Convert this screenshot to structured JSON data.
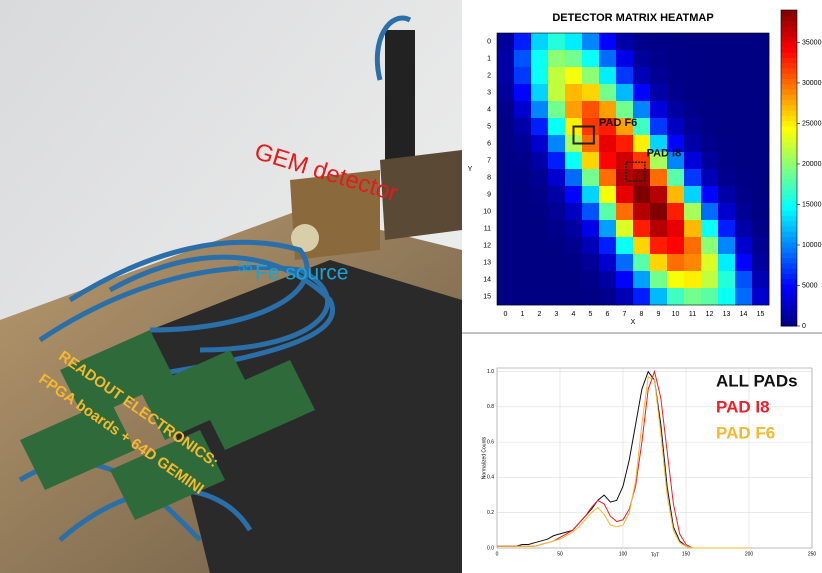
{
  "photo_labels": {
    "gem": "GEM detector",
    "source_sup": "55",
    "source": "Fe source",
    "readout_1": "READOUT ELECTRONICS:",
    "readout_2": "FPGA boards + 64D GEMINI"
  },
  "chart_data": [
    {
      "type": "heatmap",
      "title": "DETECTOR MATRIX HEATMAP",
      "x_label": "X",
      "y_label": "Y",
      "xticks": [
        0,
        1,
        2,
        3,
        4,
        5,
        6,
        7,
        8,
        9,
        10,
        11,
        12,
        13,
        14,
        15
      ],
      "yticks": [
        0,
        1,
        2,
        3,
        4,
        5,
        6,
        7,
        8,
        9,
        10,
        11,
        12,
        13,
        14,
        15
      ],
      "annotations": [
        "PAD F6",
        "PAD I8"
      ],
      "zlim": [
        0,
        39000
      ],
      "cticks": [
        0,
        5000,
        10000,
        15000,
        20000,
        25000,
        30000,
        35000
      ],
      "z": [
        [
          1000,
          6000,
          13000,
          16000,
          14000,
          10000,
          5000,
          1500,
          500,
          300,
          200,
          100,
          100,
          100,
          100,
          100
        ],
        [
          1500,
          8000,
          15000,
          20000,
          19000,
          15000,
          9000,
          4000,
          1000,
          500,
          300,
          200,
          100,
          100,
          100,
          100
        ],
        [
          1500,
          7000,
          15000,
          22000,
          24000,
          20000,
          14000,
          7000,
          2000,
          800,
          300,
          200,
          100,
          100,
          100,
          100
        ],
        [
          1000,
          5000,
          13000,
          22000,
          27000,
          26000,
          19000,
          12000,
          5000,
          1500,
          500,
          200,
          100,
          100,
          100,
          100
        ],
        [
          500,
          3000,
          10000,
          19000,
          28000,
          31000,
          28000,
          19000,
          10000,
          3500,
          1200,
          400,
          200,
          100,
          100,
          100
        ],
        [
          300,
          1500,
          6000,
          15000,
          25000,
          32000,
          33000,
          28000,
          17000,
          7000,
          2500,
          800,
          300,
          100,
          100,
          100
        ],
        [
          200,
          800,
          3000,
          10000,
          21000,
          30000,
          35000,
          33000,
          25000,
          13000,
          5000,
          1500,
          500,
          200,
          100,
          100
        ],
        [
          100,
          400,
          1500,
          6000,
          15000,
          26000,
          34000,
          36000,
          32000,
          21000,
          10000,
          3500,
          1000,
          300,
          100,
          100
        ],
        [
          100,
          200,
          800,
          3000,
          9000,
          19000,
          30000,
          37000,
          38000,
          30000,
          18000,
          7000,
          2000,
          600,
          200,
          100
        ],
        [
          100,
          100,
          400,
          1500,
          5000,
          13000,
          24000,
          35000,
          39000,
          37000,
          27000,
          13000,
          5000,
          1500,
          400,
          100
        ],
        [
          100,
          100,
          200,
          800,
          2500,
          8000,
          18000,
          30000,
          37000,
          39000,
          33000,
          21000,
          9000,
          3000,
          800,
          200
        ],
        [
          100,
          100,
          100,
          400,
          1200,
          4000,
          11000,
          23000,
          33000,
          37000,
          35000,
          27000,
          15000,
          6000,
          1500,
          400
        ],
        [
          100,
          100,
          100,
          200,
          600,
          2000,
          6000,
          15000,
          26000,
          33000,
          34000,
          30000,
          20000,
          10000,
          3000,
          700
        ],
        [
          100,
          100,
          100,
          100,
          300,
          900,
          3000,
          9000,
          18000,
          26000,
          30000,
          29000,
          23000,
          14000,
          5000,
          1200
        ],
        [
          100,
          100,
          100,
          100,
          100,
          400,
          1300,
          5000,
          11000,
          19000,
          24000,
          25000,
          22000,
          16000,
          8000,
          2000
        ],
        [
          100,
          100,
          100,
          100,
          100,
          200,
          600,
          2000,
          6000,
          12000,
          17000,
          19000,
          18000,
          15000,
          9000,
          3000
        ]
      ]
    },
    {
      "type": "line",
      "x_label": "ToT",
      "y_label": "Normalized Counts",
      "xlim": [
        0,
        250
      ],
      "xticks": [
        0,
        50,
        100,
        150,
        200,
        250
      ],
      "ylim": [
        0,
        1.02
      ],
      "yticks": [
        {
          "value": 0,
          "label": "0.0"
        },
        0.2,
        0.4,
        0.6,
        0.8,
        {
          "value": 1,
          "label": "1.0"
        }
      ],
      "grid": true,
      "x": [
        0,
        5,
        10,
        15,
        20,
        25,
        30,
        35,
        40,
        45,
        50,
        55,
        60,
        65,
        70,
        75,
        80,
        85,
        90,
        95,
        100,
        105,
        110,
        115,
        120,
        125,
        130,
        135,
        140,
        145,
        150,
        155,
        160,
        165,
        170,
        175,
        180,
        185,
        190,
        195,
        200
      ],
      "series": [
        {
          "name": "ALL PADs",
          "color": "#111111",
          "values": [
            0.01,
            0.01,
            0.01,
            0.01,
            0.02,
            0.02,
            0.03,
            0.04,
            0.05,
            0.07,
            0.08,
            0.09,
            0.1,
            0.14,
            0.18,
            0.22,
            0.27,
            0.3,
            0.26,
            0.27,
            0.35,
            0.5,
            0.7,
            0.9,
            1.0,
            0.95,
            0.7,
            0.35,
            0.12,
            0.04,
            0.01,
            0,
            0,
            0,
            0,
            0,
            0,
            0,
            0,
            0,
            0
          ]
        },
        {
          "name": "PAD I8",
          "color": "#e8202a",
          "values": [
            0.01,
            0.01,
            0.01,
            0.01,
            0.01,
            0.01,
            0.01,
            0.02,
            0.03,
            0.04,
            0.06,
            0.08,
            0.1,
            0.14,
            0.18,
            0.23,
            0.27,
            0.25,
            0.18,
            0.15,
            0.16,
            0.22,
            0.35,
            0.6,
            0.9,
            1.0,
            0.85,
            0.55,
            0.25,
            0.08,
            0.02,
            0,
            0,
            0,
            0,
            0,
            0,
            0,
            0,
            0,
            0
          ]
        },
        {
          "name": "PAD F6",
          "color": "#f5b82e",
          "values": [
            0.01,
            0.01,
            0.01,
            0.01,
            0.01,
            0.01,
            0.01,
            0.02,
            0.03,
            0.04,
            0.05,
            0.07,
            0.09,
            0.12,
            0.16,
            0.2,
            0.23,
            0.19,
            0.13,
            0.12,
            0.13,
            0.2,
            0.38,
            0.7,
            0.97,
            0.95,
            0.65,
            0.3,
            0.1,
            0.03,
            0.01,
            0,
            0,
            0,
            0,
            0,
            0,
            0,
            0,
            0,
            0
          ]
        }
      ]
    }
  ]
}
